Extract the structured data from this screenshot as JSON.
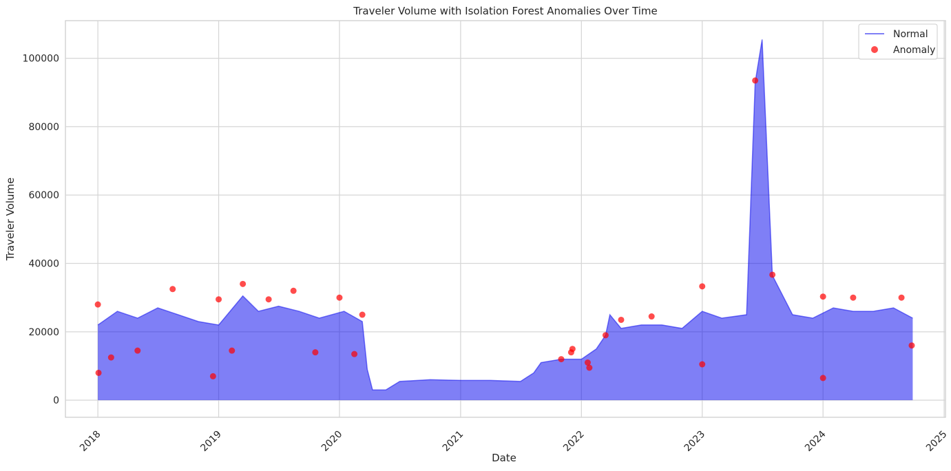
{
  "chart_data": {
    "type": "line",
    "title": "Traveler Volume with Isolation Forest Anomalies Over Time",
    "xlabel": "Date",
    "ylabel": "Traveler Volume",
    "x_range": [
      "2017-09-25",
      "2025-01-05"
    ],
    "x_ticks": [
      "2018",
      "2019",
      "2020",
      "2021",
      "2022",
      "2023",
      "2024",
      "2025"
    ],
    "ylim": [
      -5000,
      111000
    ],
    "y_ticks": [
      0,
      20000,
      40000,
      60000,
      80000,
      100000
    ],
    "y_tick_labels": [
      "0",
      "20000",
      "40000",
      "60000",
      "80000",
      "100000"
    ],
    "grid": true,
    "legend_position": "top-right",
    "series": [
      {
        "name": "Normal",
        "kind": "line",
        "color": "#0000ee",
        "points": [
          [
            "2018-01-01",
            22000
          ],
          [
            "2018-03-01",
            26000
          ],
          [
            "2018-05-01",
            24000
          ],
          [
            "2018-07-01",
            27000
          ],
          [
            "2018-09-01",
            25000
          ],
          [
            "2018-11-01",
            23000
          ],
          [
            "2019-01-01",
            22000
          ],
          [
            "2019-03-15",
            30500
          ],
          [
            "2019-05-01",
            26000
          ],
          [
            "2019-07-01",
            27500
          ],
          [
            "2019-09-01",
            26000
          ],
          [
            "2019-11-01",
            24000
          ],
          [
            "2020-01-15",
            26000
          ],
          [
            "2020-03-10",
            23000
          ],
          [
            "2020-03-25",
            9000
          ],
          [
            "2020-04-10",
            3000
          ],
          [
            "2020-05-20",
            3000
          ],
          [
            "2020-07-01",
            5500
          ],
          [
            "2020-10-01",
            6000
          ],
          [
            "2021-01-01",
            5800
          ],
          [
            "2021-04-01",
            5800
          ],
          [
            "2021-07-01",
            5500
          ],
          [
            "2021-08-10",
            8000
          ],
          [
            "2021-09-01",
            11000
          ],
          [
            "2021-11-01",
            12000
          ],
          [
            "2022-01-01",
            12000
          ],
          [
            "2022-02-15",
            15000
          ],
          [
            "2022-03-15",
            19000
          ],
          [
            "2022-03-28",
            25000
          ],
          [
            "2022-05-01",
            21000
          ],
          [
            "2022-07-01",
            22000
          ],
          [
            "2022-09-01",
            22000
          ],
          [
            "2022-11-01",
            21000
          ],
          [
            "2023-01-01",
            26000
          ],
          [
            "2023-03-01",
            24000
          ],
          [
            "2023-05-15",
            25000
          ],
          [
            "2023-06-10",
            93000
          ],
          [
            "2023-07-01",
            105500
          ],
          [
            "2023-08-01",
            36500
          ],
          [
            "2023-10-01",
            25000
          ],
          [
            "2023-12-01",
            24000
          ],
          [
            "2024-02-01",
            27000
          ],
          [
            "2024-04-01",
            26000
          ],
          [
            "2024-06-01",
            26000
          ],
          [
            "2024-08-01",
            27000
          ],
          [
            "2024-09-28",
            24000
          ]
        ]
      },
      {
        "name": "Anomaly",
        "kind": "scatter",
        "color": "#ff0000",
        "points": [
          [
            "2018-01-01",
            28000
          ],
          [
            "2018-01-03",
            8000
          ],
          [
            "2018-02-10",
            12500
          ],
          [
            "2018-05-01",
            14500
          ],
          [
            "2018-08-15",
            32500
          ],
          [
            "2018-12-15",
            7000
          ],
          [
            "2019-01-01",
            29500
          ],
          [
            "2019-02-10",
            14500
          ],
          [
            "2019-03-15",
            34000
          ],
          [
            "2019-06-01",
            29500
          ],
          [
            "2019-08-15",
            32000
          ],
          [
            "2019-10-20",
            14000
          ],
          [
            "2020-01-01",
            30000
          ],
          [
            "2020-02-15",
            13500
          ],
          [
            "2020-03-10",
            25000
          ],
          [
            "2021-11-01",
            12000
          ],
          [
            "2021-12-01",
            14000
          ],
          [
            "2021-12-05",
            15000
          ],
          [
            "2022-01-20",
            11000
          ],
          [
            "2022-01-25",
            9500
          ],
          [
            "2022-03-15",
            19000
          ],
          [
            "2022-05-01",
            23500
          ],
          [
            "2022-08-01",
            24500
          ],
          [
            "2023-01-01",
            33300
          ],
          [
            "2023-01-01",
            10500
          ],
          [
            "2023-06-10",
            93500
          ],
          [
            "2023-08-01",
            36700
          ],
          [
            "2024-01-01",
            30300
          ],
          [
            "2024-01-01",
            6500
          ],
          [
            "2024-04-01",
            30000
          ],
          [
            "2024-08-25",
            30000
          ],
          [
            "2024-09-25",
            16000
          ]
        ]
      }
    ]
  }
}
